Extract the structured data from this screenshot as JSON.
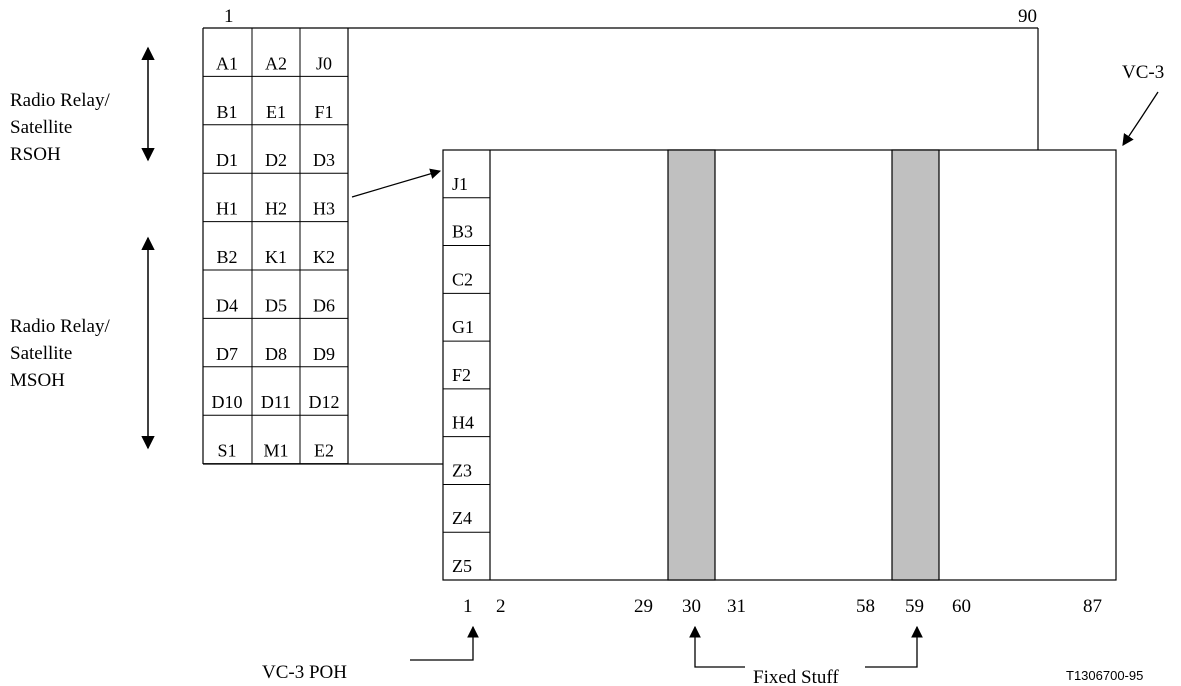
{
  "sts_frame": {
    "col_start": "1",
    "col_end": "90",
    "soh_rows": [
      [
        "A1",
        "A2",
        "J0"
      ],
      [
        "B1",
        "E1",
        "F1"
      ],
      [
        "D1",
        "D2",
        "D3"
      ],
      [
        "H1",
        "H2",
        "H3"
      ],
      [
        "B2",
        "K1",
        "K2"
      ],
      [
        "D4",
        "D5",
        "D6"
      ],
      [
        "D7",
        "D8",
        "D9"
      ],
      [
        "D10",
        "D11",
        "D12"
      ],
      [
        "S1",
        "M1",
        "E2"
      ]
    ]
  },
  "rsoh_label": [
    "Radio Relay/",
    "Satellite",
    "RSOH"
  ],
  "msoh_label": [
    "Radio Relay/",
    "Satellite",
    "MSOH"
  ],
  "vc3": {
    "label": "VC-3",
    "poh_bytes": [
      "J1",
      "B3",
      "C2",
      "G1",
      "F2",
      "H4",
      "Z3",
      "Z4",
      "Z5"
    ],
    "column_labels": [
      "1",
      "2",
      "29",
      "30",
      "31",
      "58",
      "59",
      "60",
      "87"
    ],
    "poh_label": "VC-3 POH",
    "fixed_stuff_label": "Fixed Stuff"
  },
  "figure_ref": "T1306700-95",
  "colors": {
    "fixed_stuff_fill": "#c0c0c0",
    "line": "#000000"
  }
}
